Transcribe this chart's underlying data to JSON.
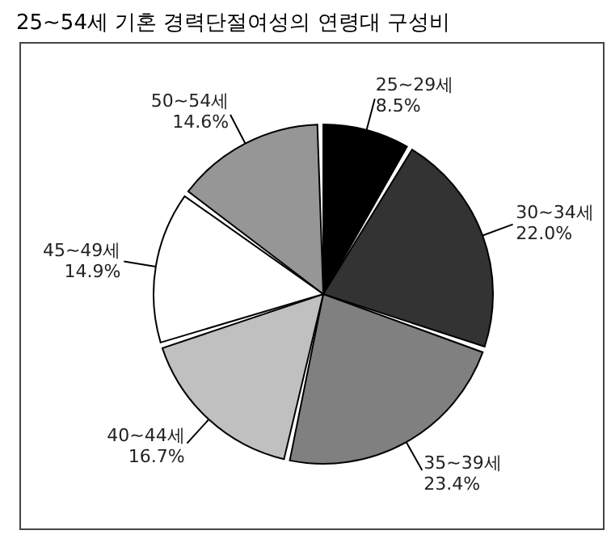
{
  "chart_data": {
    "type": "pie",
    "title": "25~54세 기혼 경력단절여성의 연령대 구성비",
    "categories": [
      "25~29세",
      "30~34세",
      "35~39세",
      "40~44세",
      "45~49세",
      "50~54세"
    ],
    "values": [
      8.5,
      22.0,
      23.4,
      16.7,
      14.9,
      14.6
    ],
    "value_labels": [
      "8.5%",
      "22.0%",
      "23.4%",
      "16.7%",
      "14.9%",
      "14.6%"
    ],
    "colors": [
      "#000000",
      "#333333",
      "#808080",
      "#c0c0c0",
      "#ffffff",
      "#969696"
    ],
    "legend": false
  }
}
